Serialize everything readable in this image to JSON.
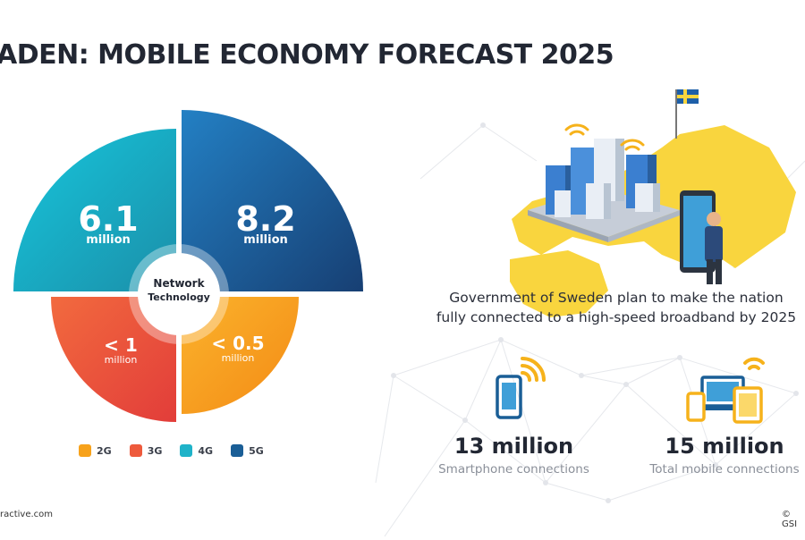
{
  "title": "ADEN: MOBILE ECONOMY FORECAST 2025",
  "colors": {
    "g2": "#f7a21b",
    "g3": "#ee5a3c",
    "g4": "#1fb3c9",
    "g5": "#1a5e96",
    "map": "#f9d53e",
    "flag_blue": "#1d5fa8",
    "flag_yellow": "#f9d53e"
  },
  "network_chart": {
    "center_label_1": "Network",
    "center_label_2": "Technology",
    "segments": [
      {
        "id": "4g",
        "value": "6.1",
        "unit": "million"
      },
      {
        "id": "5g",
        "value": "8.2",
        "unit": "million"
      },
      {
        "id": "3g",
        "value": "< 1",
        "unit": "million"
      },
      {
        "id": "2g",
        "value": "< 0.5",
        "unit": "million"
      }
    ]
  },
  "legend": [
    {
      "label": "2G",
      "color": "#f7a21b"
    },
    {
      "label": "3G",
      "color": "#ee5a3c"
    },
    {
      "label": "4G",
      "color": "#1fb3c9"
    },
    {
      "label": "5G",
      "color": "#1a5e96"
    }
  ],
  "government": {
    "line1": "Government of Sweden plan to make the nation",
    "line2": "fully connected to a high-speed broadband by 2025"
  },
  "stats": [
    {
      "value": "13 million",
      "label": "Smartphone connections",
      "icon": "smartphone-wifi-icon"
    },
    {
      "value": "15 million",
      "label": "Total mobile connections",
      "icon": "devices-wifi-icon"
    }
  ],
  "footer": {
    "left": "ractive.com",
    "right": "© GSI"
  }
}
